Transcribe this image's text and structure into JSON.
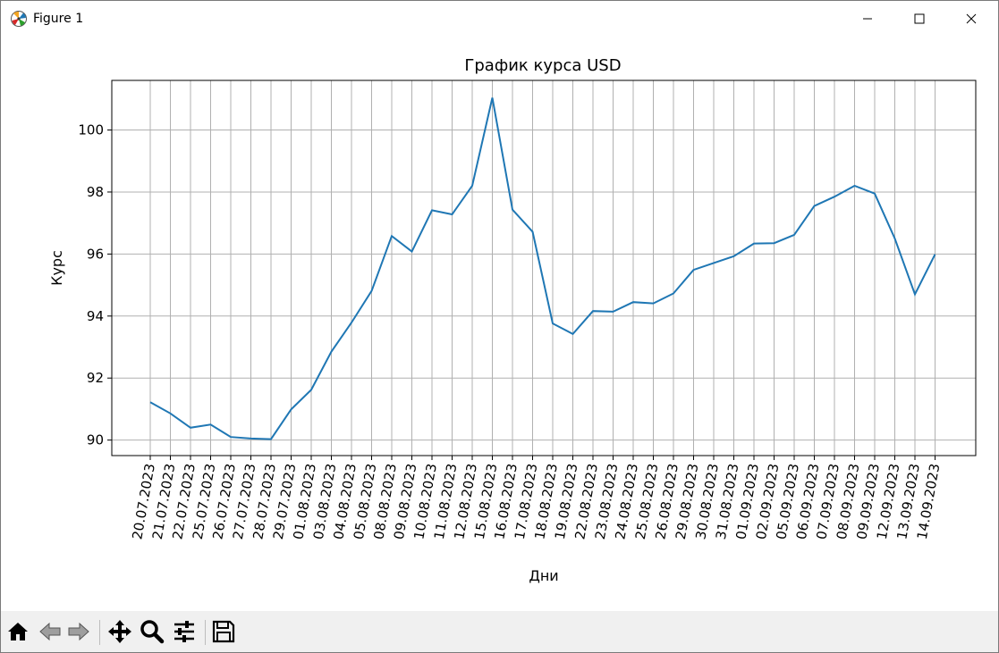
{
  "window": {
    "title": "Figure 1",
    "icons": {
      "app": "matplotlib-logo-icon",
      "minimize": "minimize-icon",
      "maximize": "maximize-icon",
      "close": "close-icon"
    }
  },
  "toolbar": {
    "buttons": [
      {
        "name": "home",
        "icon": "home-icon"
      },
      {
        "name": "back",
        "icon": "arrow-left-icon"
      },
      {
        "name": "forward",
        "icon": "arrow-right-icon"
      },
      {
        "name": "pan",
        "icon": "move-icon"
      },
      {
        "name": "zoom",
        "icon": "magnifier-icon"
      },
      {
        "name": "configure-subplots",
        "icon": "sliders-icon"
      },
      {
        "name": "save",
        "icon": "floppy-disk-icon"
      }
    ]
  },
  "chart_data": {
    "type": "line",
    "title": "График курса USD",
    "xlabel": "Дни",
    "ylabel": "Курс",
    "grid": true,
    "line_color": "#1f77b4",
    "ylim": [
      89.5,
      101.6
    ],
    "yticks": [
      90,
      92,
      94,
      96,
      98,
      100
    ],
    "categories": [
      "20.07.2023",
      "21.07.2023",
      "22.07.2023",
      "25.07.2023",
      "26.07.2023",
      "27.07.2023",
      "28.07.2023",
      "29.07.2023",
      "01.08.2023",
      "03.08.2023",
      "04.08.2023",
      "05.08.2023",
      "08.08.2023",
      "09.08.2023",
      "10.08.2023",
      "11.08.2023",
      "12.08.2023",
      "15.08.2023",
      "16.08.2023",
      "17.08.2023",
      "18.08.2023",
      "19.08.2023",
      "22.08.2023",
      "23.08.2023",
      "24.08.2023",
      "25.08.2023",
      "26.08.2023",
      "29.08.2023",
      "30.08.2023",
      "31.08.2023",
      "01.09.2023",
      "02.09.2023",
      "05.09.2023",
      "06.09.2023",
      "07.09.2023",
      "08.09.2023",
      "09.09.2023",
      "12.09.2023",
      "13.09.2023",
      "14.09.2023"
    ],
    "values": [
      91.22,
      90.86,
      90.4,
      90.5,
      90.1,
      90.05,
      90.03,
      90.99,
      91.62,
      92.85,
      93.79,
      94.81,
      96.58,
      96.08,
      97.41,
      97.28,
      98.2,
      101.04,
      97.43,
      96.72,
      93.76,
      93.42,
      94.16,
      94.14,
      94.45,
      94.41,
      94.73,
      95.49,
      95.71,
      95.93,
      96.34,
      96.35,
      96.62,
      97.55,
      97.85,
      98.2,
      97.95,
      96.5,
      94.7,
      95.99
    ]
  }
}
